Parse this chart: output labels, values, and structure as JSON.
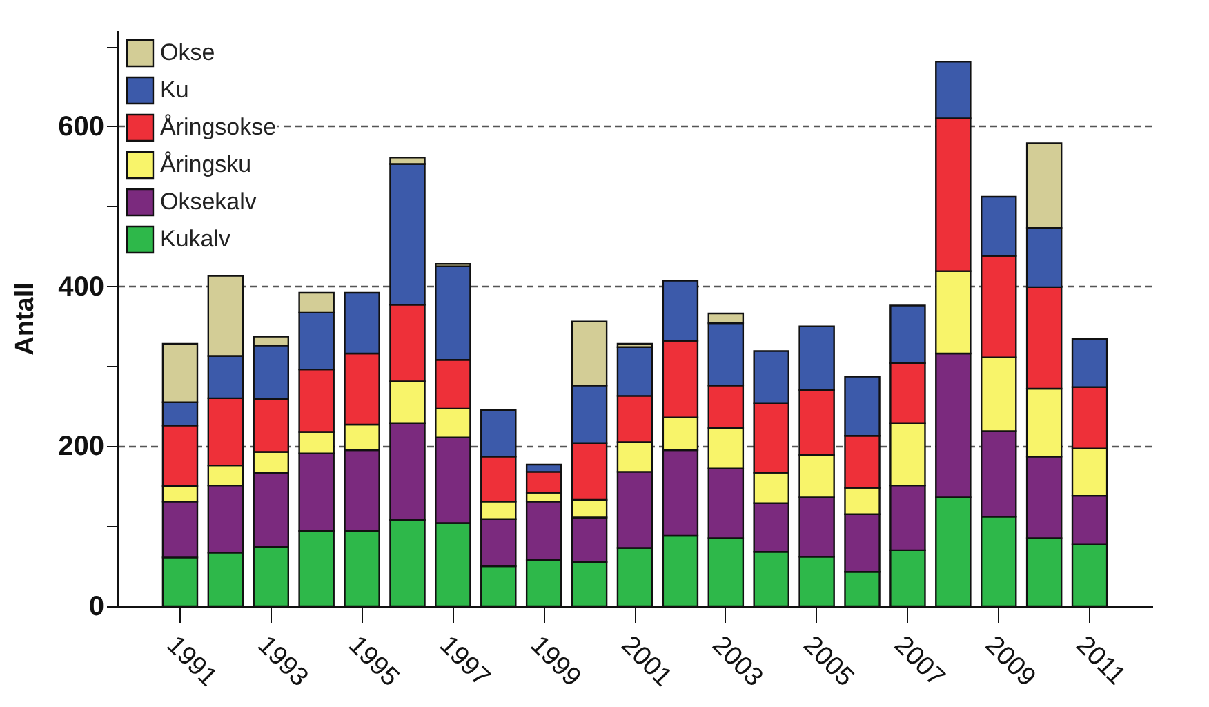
{
  "chart_data": {
    "type": "bar",
    "stacked": true,
    "ylabel": "Antall",
    "categories": [
      "1991",
      null,
      "1993",
      null,
      "1995",
      null,
      "1997",
      null,
      "1999",
      null,
      "2001",
      null,
      "2003",
      null,
      "2005",
      null,
      "2007",
      null,
      "2009",
      null,
      "2011"
    ],
    "series": [
      {
        "name": "Kukalv",
        "color": "#2eb84a",
        "values": [
          61,
          67,
          74,
          94,
          94,
          108,
          104,
          50,
          58,
          55,
          73,
          88,
          85,
          68,
          62,
          43,
          70,
          136,
          112,
          85,
          77
        ]
      },
      {
        "name": "Oksekalv",
        "color": "#7b2a7e",
        "values": [
          70,
          84,
          93,
          97,
          101,
          121,
          107,
          59,
          73,
          56,
          95,
          107,
          87,
          61,
          74,
          72,
          81,
          180,
          107,
          102,
          61
        ]
      },
      {
        "name": "Åringsku",
        "color": "#f8f46a",
        "values": [
          19,
          25,
          26,
          27,
          32,
          52,
          36,
          22,
          11,
          22,
          37,
          41,
          51,
          38,
          53,
          33,
          78,
          103,
          92,
          85,
          59
        ]
      },
      {
        "name": "Åringsokse",
        "color": "#ee3039",
        "values": [
          76,
          84,
          66,
          78,
          89,
          96,
          61,
          56,
          26,
          71,
          58,
          96,
          53,
          87,
          81,
          65,
          75,
          191,
          127,
          127,
          77
        ]
      },
      {
        "name": "Ku",
        "color": "#3c5aaa",
        "values": [
          29,
          53,
          67,
          71,
          76,
          176,
          117,
          58,
          9,
          72,
          61,
          75,
          78,
          65,
          80,
          74,
          72,
          71,
          74,
          74,
          60
        ]
      },
      {
        "name": "Okse",
        "color": "#d3cd96",
        "values": [
          73,
          100,
          11,
          25,
          null,
          8,
          3,
          null,
          null,
          80,
          4,
          null,
          12,
          null,
          null,
          null,
          null,
          null,
          null,
          106,
          null
        ]
      }
    ],
    "ylim": [
      0,
      720
    ],
    "yticks": [
      0,
      {
        "value": 100,
        "label": null
      },
      200,
      {
        "value": 300,
        "label": null
      },
      400,
      {
        "value": 500,
        "label": null
      },
      600,
      {
        "value": 700,
        "label": null
      }
    ],
    "grid": "y",
    "legend": "top left"
  }
}
